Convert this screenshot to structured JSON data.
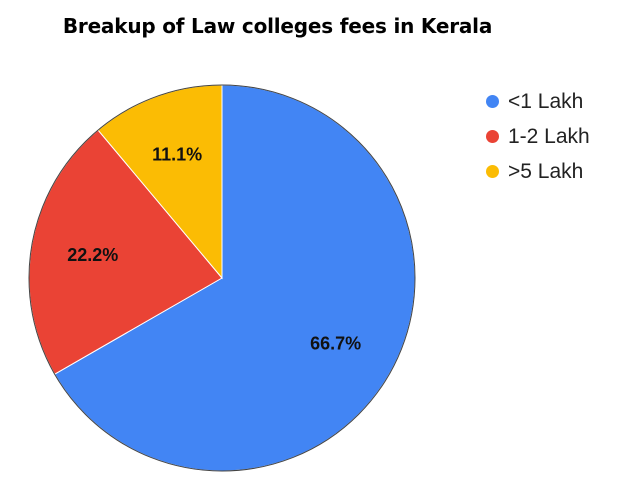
{
  "chart_data": {
    "type": "pie",
    "title": "Breakup of Law colleges fees in Kerala",
    "categories": [
      "<1 Lakh",
      "1-2 Lakh",
      ">5 Lakh"
    ],
    "values": [
      66.7,
      22.2,
      11.1
    ],
    "labels": [
      "66.7%",
      "22.2%",
      "11.1%"
    ],
    "colors": [
      "#4285f4",
      "#ea4335",
      "#fbbc04"
    ],
    "start": "12 o'clock, clockwise",
    "legend": "right"
  }
}
